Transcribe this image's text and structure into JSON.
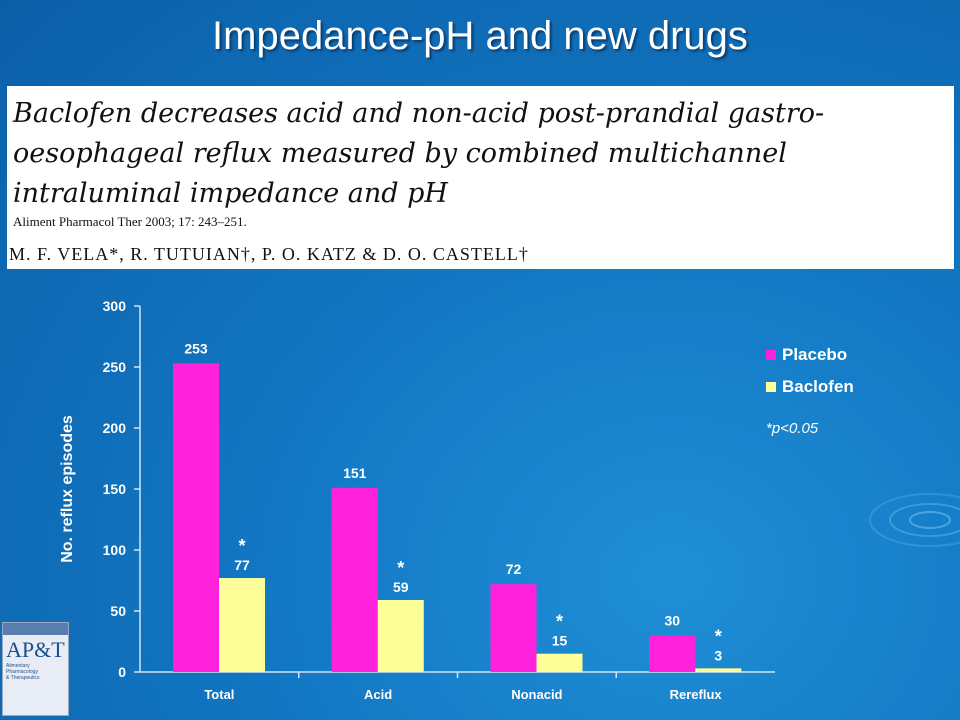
{
  "slide": {
    "title": "Impedance-pH and new drugs"
  },
  "citation": {
    "title": "Baclofen decreases acid and non-acid post-prandial gastro-oesophageal reflux measured by combined multichannel intraluminal impedance and pH",
    "journal": "Aliment Pharmacol Ther 2003; 17: 243–251.",
    "authors": "M. F. VELA*, R. TUTUIAN†, P. O. KATZ & D. O. CASTELL†"
  },
  "cover": {
    "logo": "AP&T",
    "name": "Alimentary\nPharmacology\n& Therapeutics"
  },
  "chart_data": {
    "type": "bar",
    "categories": [
      "Total",
      "Acid",
      "Nonacid",
      "Rereflux"
    ],
    "series": [
      {
        "name": "Placebo",
        "values": [
          253,
          151,
          72,
          30
        ],
        "color": "#ff22dd"
      },
      {
        "name": "Baclofen",
        "values": [
          77,
          59,
          15,
          3
        ],
        "color": "#ffff99"
      }
    ],
    "significance": [
      true,
      true,
      true,
      true
    ],
    "significance_marker": "*",
    "annotation": "*p<0.05",
    "ylabel": "No. reflux episodes",
    "ylim": [
      0,
      300
    ],
    "yticks": [
      0,
      50,
      100,
      150,
      200,
      250,
      300
    ],
    "legend_position": "top-right"
  }
}
